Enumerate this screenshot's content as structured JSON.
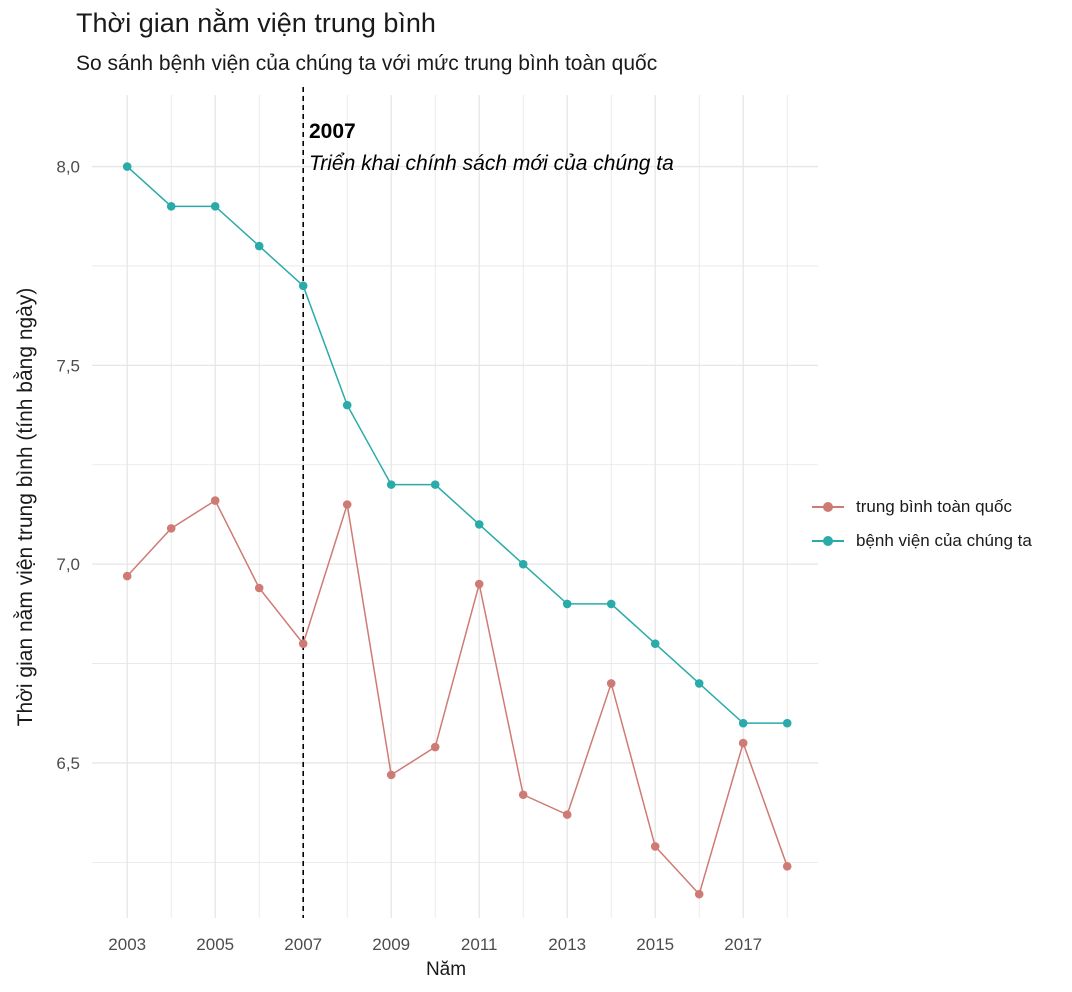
{
  "title": "Thời gian nằm viện trung bình",
  "subtitle": "So sánh bệnh viện của chúng ta với mức trung bình toàn quốc",
  "annotation": {
    "year": "2007",
    "text": "Triển khai chính sách mới của chúng ta"
  },
  "colors": {
    "national": "#cf7b75",
    "hospital": "#2aabaa",
    "grid": "#e6e6e6",
    "axis_text": "#4d4d4d"
  },
  "chart_data": {
    "type": "line",
    "xlabel": "Năm",
    "ylabel": "Thời gian nằm viện trung bình (tính bằng ngày)",
    "x": [
      2003,
      2004,
      2005,
      2006,
      2007,
      2008,
      2009,
      2010,
      2011,
      2012,
      2013,
      2014,
      2015,
      2016,
      2017,
      2018
    ],
    "xticks": [
      2003,
      2005,
      2007,
      2009,
      2011,
      2013,
      2015,
      2017
    ],
    "xlim": [
      2002.2,
      2018.7
    ],
    "ylim": [
      6.11,
      8.18
    ],
    "yticks": [
      {
        "value": 6.5,
        "label": "6,5"
      },
      {
        "value": 7.0,
        "label": "7,0"
      },
      {
        "value": 7.5,
        "label": "7,5"
      },
      {
        "value": 8.0,
        "label": "8,0"
      }
    ],
    "vline": 2007,
    "grid": true,
    "legend_position": "right",
    "series": [
      {
        "name": "trung bình toàn quốc",
        "color": "#cf7b75",
        "values": [
          6.97,
          7.09,
          7.16,
          6.94,
          6.8,
          7.15,
          6.47,
          6.54,
          6.95,
          6.42,
          6.37,
          6.7,
          6.29,
          6.17,
          6.55,
          6.24
        ]
      },
      {
        "name": "bệnh viện của chúng ta",
        "color": "#2aabaa",
        "values": [
          8.0,
          7.9,
          7.9,
          7.8,
          7.7,
          7.4,
          7.2,
          7.2,
          7.1,
          7.0,
          6.9,
          6.9,
          6.8,
          6.7,
          6.6,
          6.6
        ]
      }
    ]
  }
}
